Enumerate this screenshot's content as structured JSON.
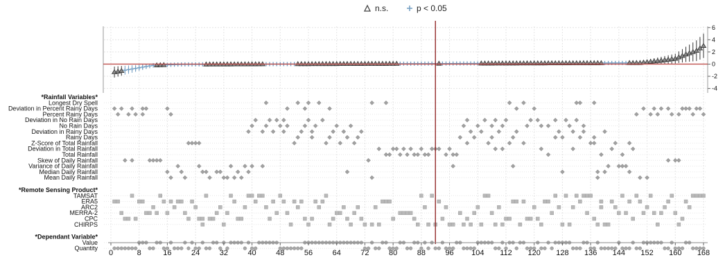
{
  "chart_data": {
    "type": "scatter",
    "title": "",
    "legend": {
      "placement": "top-center",
      "entries": [
        {
          "marker": "triangle",
          "label": "n.s."
        },
        {
          "marker": "plus",
          "label": "p < 0.05"
        }
      ]
    },
    "colors": {
      "ns": "#555555",
      "sig": "#6f9bc0",
      "zero_line": "#c0504d",
      "marker_line": "#8b1a1a",
      "indicator": "#a0a0a0"
    },
    "x_axis": {
      "ticks": [
        "0",
        "8",
        "16",
        "24",
        "32",
        "40",
        "48",
        "56",
        "64",
        "72",
        "80",
        "88",
        "96",
        "104",
        "112",
        "120",
        "128",
        "136",
        "144",
        "152",
        "160",
        "168"
      ],
      "xlim": [
        0,
        168
      ]
    },
    "y_axis": {
      "ticks": [
        "6",
        "4",
        "2",
        "0",
        "-2",
        "-4"
      ],
      "ylim": [
        -4.5,
        6.2
      ]
    },
    "n_specifications": 168,
    "highlight_x": 92,
    "grid": true,
    "estimate_profile": [
      {
        "x": 1,
        "y": -1.3
      },
      {
        "x": 6,
        "y": -0.8
      },
      {
        "x": 12,
        "y": -0.2
      },
      {
        "x": 20,
        "y": -0.05
      },
      {
        "x": 150,
        "y": 0.2
      },
      {
        "x": 156,
        "y": 0.6
      },
      {
        "x": 160,
        "y": 0.9
      },
      {
        "x": 163,
        "y": 1.6
      },
      {
        "x": 166,
        "y": 2.2
      },
      {
        "x": 168,
        "y": 3.0
      }
    ],
    "estimate_uncertainty": [
      {
        "x": 1,
        "e": 0.9
      },
      {
        "x": 10,
        "e": 0.4
      },
      {
        "x": 20,
        "e": 0.15
      },
      {
        "x": 148,
        "e": 0.2
      },
      {
        "x": 160,
        "e": 0.8
      },
      {
        "x": 168,
        "e": 2.0
      }
    ],
    "significance_ranges": [
      [
        4,
        12
      ],
      [
        16,
        26
      ],
      [
        44,
        52
      ],
      [
        82,
        92
      ],
      [
        94,
        104
      ],
      [
        140,
        146
      ]
    ],
    "groups": [
      {
        "header": "*Rainfall Variables*",
        "rows": [
          {
            "label": "Longest Dry Spell",
            "x": [
              44,
              53,
              56,
              59,
              74,
              78,
              113,
              117,
              132,
              133,
              137
            ]
          },
          {
            "label": "Deviation in Percent Rainy Days",
            "x": [
              1,
              3,
              6,
              9,
              10,
              16,
              50,
              55,
              62,
              115,
              120,
              151,
              154,
              156,
              158,
              162,
              163,
              164,
              166,
              167
            ]
          },
          {
            "label": "Percent Rainy Days",
            "x": [
              2,
              5,
              7,
              9,
              17,
              149,
              153,
              155,
              159,
              161,
              165,
              168
            ]
          },
          {
            "label": "Deviation in No Rain Days",
            "x": [
              41,
              45,
              47,
              49,
              56,
              60,
              101,
              106,
              109,
              112,
              119,
              121,
              126,
              129,
              132
            ]
          },
          {
            "label": "No Rain Days",
            "x": [
              40,
              44,
              48,
              50,
              55,
              58,
              64,
              68,
              100,
              104,
              108,
              111,
              118,
              122,
              124,
              130,
              134
            ]
          },
          {
            "label": "Deviation in Rainy Days",
            "x": [
              39,
              43,
              46,
              49,
              54,
              57,
              63,
              66,
              71,
              102,
              105,
              110,
              115,
              127,
              131,
              134,
              140
            ]
          },
          {
            "label": "Rainy Days",
            "x": [
              53,
              57,
              62,
              67,
              70,
              99,
              103,
              108,
              114,
              126,
              128,
              133,
              137
            ]
          },
          {
            "label": "Z-Score of Total Rainfall",
            "x": [
              22,
              23,
              24,
              25,
              52,
              61,
              65,
              69,
              101,
              107,
              113,
              117,
              136,
              137,
              143,
              147
            ]
          },
          {
            "label": "Deviation in Total Rainfall",
            "x": [
              76,
              80,
              81,
              83,
              85,
              88,
              91,
              92,
              93,
              96,
              109,
              111,
              122,
              131,
              142,
              148
            ]
          },
          {
            "label": "Total Rainfall",
            "x": [
              78,
              79,
              82,
              84,
              86,
              87,
              89,
              90,
              95,
              97,
              98,
              124,
              139,
              145
            ]
          },
          {
            "label": "Skew of Daily Rainfall",
            "x": [
              4,
              6,
              11,
              12,
              13,
              14,
              73,
              158,
              160,
              161
            ]
          },
          {
            "label": "Variance of Daily Rainfall",
            "x": [
              19,
              25,
              34,
              38,
              40,
              43,
              97,
              114,
              141,
              144,
              145,
              146
            ]
          },
          {
            "label": "Median Daily Rainfall",
            "x": [
              16,
              20,
              26,
              27,
              30,
              31,
              36,
              39,
              67,
              128,
              138,
              140,
              147
            ]
          },
          {
            "label": "Mean Daily Rainfall",
            "x": [
              17,
              21,
              28,
              32,
              33,
              35,
              37,
              74,
              138,
              150,
              152
            ]
          }
        ]
      },
      {
        "header": "*Remote Sensing Product*",
        "rows": [
          {
            "label": "TAMSAT",
            "x": [
              6,
              14,
              27,
              34,
              39,
              40,
              42,
              43,
              48,
              61,
              88,
              91,
              106,
              107,
              126,
              129,
              132,
              134,
              135,
              136,
              145,
              149,
              153,
              159,
              165,
              166,
              167,
              168
            ]
          },
          {
            "label": "ERA5",
            "x": [
              1,
              2,
              8,
              9,
              15,
              17,
              19,
              20,
              23,
              35,
              41,
              46,
              49,
              52,
              54,
              58,
              60,
              77,
              78,
              79,
              93,
              114,
              115,
              117,
              123,
              124,
              133,
              139,
              142,
              147,
              150,
              158,
              163
            ]
          },
          {
            "label": "ARC2",
            "x": [
              12,
              18,
              24,
              31,
              38,
              44,
              53,
              59,
              66,
              70,
              75,
              89,
              95,
              104,
              110,
              120,
              127,
              131,
              139,
              143,
              152,
              157,
              164
            ]
          },
          {
            "label": "MERRA-2",
            "x": [
              3,
              10,
              11,
              13,
              16,
              21,
              30,
              33,
              47,
              50,
              64,
              65,
              69,
              82,
              83,
              84,
              85,
              99,
              103,
              108,
              125,
              135,
              144,
              146,
              151,
              154,
              156,
              160
            ]
          },
          {
            "label": "CPC",
            "x": [
              4,
              5,
              7,
              22,
              25,
              26,
              28,
              29,
              36,
              37,
              45,
              55,
              57,
              63,
              67,
              71,
              80,
              86,
              94,
              101,
              112,
              113,
              118,
              119,
              121,
              137,
              148,
              162
            ]
          },
          {
            "label": "CHIRPS",
            "x": [
              26,
              32,
              51,
              56,
              62,
              68,
              72,
              74,
              76,
              87,
              90,
              92,
              96,
              97,
              100,
              102,
              105,
              109,
              111,
              116,
              122,
              128,
              130,
              138,
              140,
              141,
              155,
              161
            ]
          }
        ]
      },
      {
        "header": "*Dependant Variable*",
        "rows": [
          {
            "label": "Value",
            "x": [
              8,
              9,
              10,
              13,
              14,
              17,
              21,
              23,
              26,
              29,
              30,
              32,
              34,
              35,
              36,
              37,
              39,
              42,
              43,
              44,
              45,
              46,
              47,
              55,
              56,
              57,
              58,
              59,
              60,
              61,
              62,
              63,
              64,
              65,
              66,
              67,
              68,
              69,
              70,
              71,
              74,
              77,
              78,
              82,
              83,
              86,
              87,
              89,
              91,
              94,
              98,
              99,
              104,
              105,
              106,
              107,
              108,
              111,
              113,
              114,
              116,
              117,
              121,
              124,
              126,
              127,
              128,
              129,
              130,
              134,
              135,
              138,
              144,
              148,
              151,
              152,
              153,
              154,
              155,
              156,
              159,
              163,
              164
            ]
          },
          {
            "label": "Quantity",
            "x": [
              1,
              2,
              3,
              4,
              5,
              6,
              7,
              11,
              12,
              15,
              16,
              18,
              19,
              20,
              22,
              24,
              25,
              27,
              28,
              31,
              33,
              38,
              40,
              41,
              48,
              49,
              50,
              51,
              52,
              53,
              54,
              72,
              73,
              75,
              76,
              79,
              80,
              81,
              84,
              85,
              88,
              90,
              92,
              93,
              95,
              96,
              97,
              100,
              101,
              102,
              103,
              109,
              110,
              112,
              115,
              118,
              119,
              120,
              122,
              123,
              125,
              131,
              132,
              133,
              136,
              137,
              139,
              140,
              141,
              142,
              143,
              145,
              146,
              147,
              149,
              150,
              157,
              158,
              160,
              161,
              162,
              165,
              166,
              167,
              168
            ]
          }
        ]
      }
    ]
  }
}
